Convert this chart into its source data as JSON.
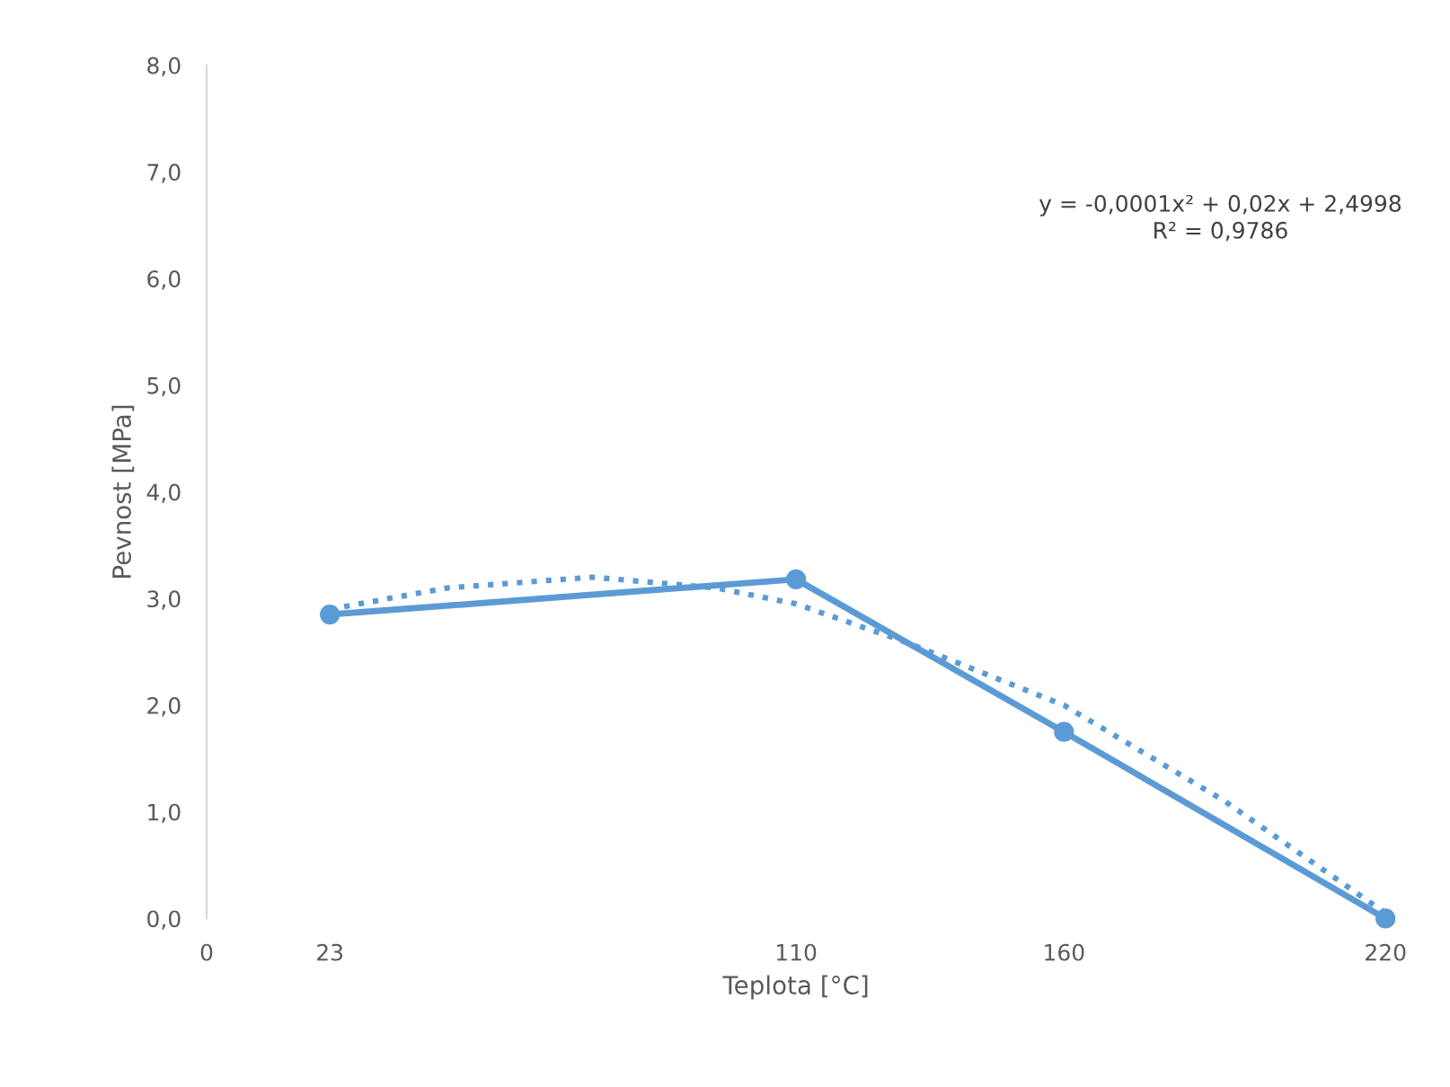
{
  "chart_data": {
    "type": "line",
    "xlabel": "Teplota [°C]",
    "ylabel": "Pevnost [MPa]",
    "xlim": [
      0,
      220
    ],
    "xticks": [
      0,
      23,
      110,
      160,
      220
    ],
    "ylim": [
      0,
      8
    ],
    "yticks": [
      {
        "value": 0,
        "label": "0,0"
      },
      {
        "value": 1,
        "label": "1,0"
      },
      {
        "value": 2,
        "label": "2,0"
      },
      {
        "value": 3,
        "label": "3,0"
      },
      {
        "value": 4,
        "label": "4,0"
      },
      {
        "value": 5,
        "label": "5,0"
      },
      {
        "value": 6,
        "label": "6,0"
      },
      {
        "value": 7,
        "label": "7,0"
      },
      {
        "value": 8,
        "label": "8,0"
      }
    ],
    "grid": false,
    "legend": false,
    "series": [
      {
        "color": "#5b9bd5",
        "x": [
          23,
          110,
          160,
          220
        ],
        "values": [
          2.85,
          3.18,
          1.75,
          0.0
        ],
        "marker": "circle",
        "line_style": "solid"
      },
      {
        "type": "line",
        "color": "#5b9bd5",
        "x": [
          23,
          45,
          72,
          95,
          110,
          130,
          160,
          190,
          220
        ],
        "values": [
          2.9,
          3.1,
          3.2,
          3.1,
          2.95,
          2.6,
          2.0,
          1.1,
          0.05
        ],
        "marker": "none",
        "line_style": "dotted"
      }
    ],
    "annotations": [
      "y = -0,0001x² + 0,02x + 2,4998\nR² = 0,9786"
    ]
  }
}
